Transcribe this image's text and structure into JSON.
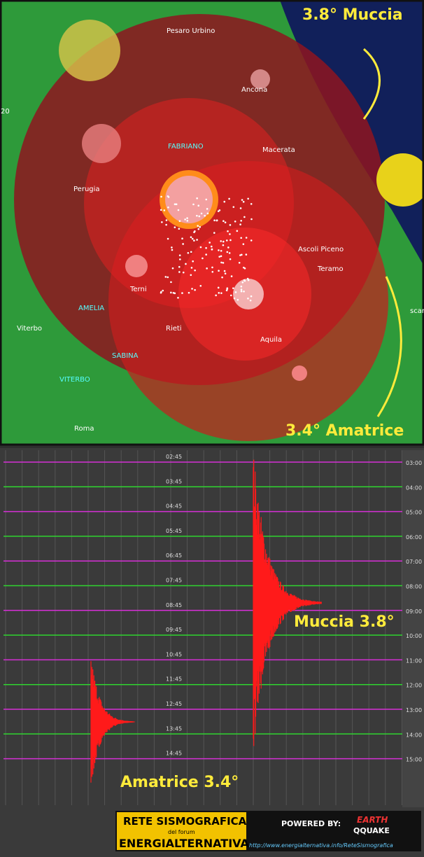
{
  "map": {
    "annotations": [
      "3.8° Muccia",
      "3.4° Amatrice"
    ],
    "cities": [
      "Pesaro Urbino",
      "Ancona",
      "Macerata",
      "Perugia",
      "Ascoli Piceno",
      "Teramo",
      "Terni",
      "Rieti",
      "Viterbo",
      "Aquila",
      "Roma"
    ],
    "stations": [
      "FABRIANO",
      "AMELIA",
      "SABINA",
      "VITERBO"
    ],
    "edge_labels": [
      "20",
      "scar"
    ]
  },
  "seismogram": {
    "left_times": [
      "02:45",
      "03:45",
      "04:45",
      "05:45",
      "06:45",
      "07:45",
      "08:45",
      "09:45",
      "10:45",
      "11:45",
      "12:45",
      "13:45",
      "14:45"
    ],
    "right_times": [
      "03:00",
      "04:00",
      "05:00",
      "06:00",
      "07:00",
      "08:00",
      "09:00",
      "10:00",
      "11:00",
      "12:00",
      "13:00",
      "14:00",
      "15:00"
    ],
    "annotations": [
      "Muccia 3.8°",
      "Amatrice 3.4°"
    ]
  },
  "footer": {
    "title": "RETE SISMOGRAFICA",
    "subtitle": "del forum",
    "brand": "ENERGIALTERNATIVA",
    "powered": "POWERED BY:",
    "logo_top": "EARTH",
    "logo_bottom": "QQUAKE",
    "url": "http://www.energialternativa.info/ReteSismografica"
  }
}
